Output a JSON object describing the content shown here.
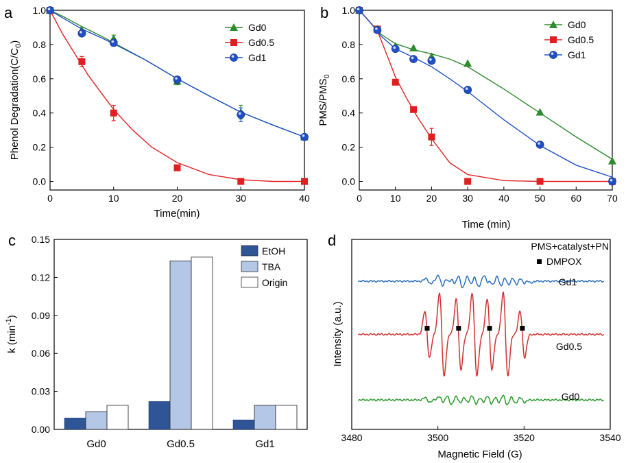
{
  "chart_data": [
    {
      "panel": "a",
      "type": "line",
      "xlabel": "Time(min)",
      "ylabel_main": "Phenol Degradation(C/C",
      "ylabel_sub": "0",
      "ylabel_close": ")",
      "xlim": [
        0,
        40
      ],
      "ylim": [
        -0.05,
        1.0
      ],
      "xticks": [
        0,
        10,
        20,
        30,
        40
      ],
      "xtick_labels": [
        "0",
        "10",
        "20",
        "30",
        "40"
      ],
      "yticks": [
        0.0,
        0.2,
        0.4,
        0.6,
        0.8,
        1.0
      ],
      "ytick_labels": [
        "0.0",
        "0.2",
        "0.4",
        "0.6",
        "0.8",
        "1.0"
      ],
      "legend_position": "top-right",
      "series": [
        {
          "name": "Gd0",
          "marker": "triangle",
          "color": "#2e8b2e",
          "x": [
            0,
            5,
            10,
            20,
            30,
            40
          ],
          "y": [
            1.0,
            0.885,
            0.835,
            0.585,
            0.405,
            0.26
          ],
          "err": [
            0,
            0.015,
            0.02,
            0.02,
            0.04,
            0.015
          ],
          "fit": [
            [
              0,
              1.0
            ],
            [
              2,
              0.965
            ],
            [
              5,
              0.905
            ],
            [
              8,
              0.85
            ],
            [
              10,
              0.81
            ],
            [
              15,
              0.71
            ],
            [
              20,
              0.6
            ],
            [
              25,
              0.5
            ],
            [
              30,
              0.405
            ],
            [
              35,
              0.33
            ],
            [
              40,
              0.26
            ]
          ]
        },
        {
          "name": "Gd0.5",
          "marker": "square",
          "color": "#e02020",
          "x": [
            0,
            5,
            10,
            20,
            30,
            40
          ],
          "y": [
            1.0,
            0.7,
            0.4,
            0.08,
            0.0,
            0.0
          ],
          "err": [
            0,
            0.03,
            0.045,
            0.01,
            0.005,
            0.005
          ],
          "fit": [
            [
              0,
              1.0
            ],
            [
              2,
              0.86
            ],
            [
              4,
              0.74
            ],
            [
              6,
              0.62
            ],
            [
              8,
              0.52
            ],
            [
              10,
              0.42
            ],
            [
              13,
              0.3
            ],
            [
              16,
              0.2
            ],
            [
              20,
              0.11
            ],
            [
              25,
              0.04
            ],
            [
              30,
              0.01
            ],
            [
              35,
              0.0
            ],
            [
              40,
              0.0
            ]
          ]
        },
        {
          "name": "Gd1",
          "marker": "circle",
          "color": "#2050c8",
          "x": [
            0,
            5,
            10,
            20,
            30,
            40
          ],
          "y": [
            1.0,
            0.865,
            0.81,
            0.595,
            0.39,
            0.26
          ],
          "err": [
            0,
            0.015,
            0.02,
            0.015,
            0.04,
            0.015
          ],
          "fit": [
            [
              0,
              1.0
            ],
            [
              2,
              0.955
            ],
            [
              5,
              0.89
            ],
            [
              8,
              0.84
            ],
            [
              10,
              0.805
            ],
            [
              15,
              0.71
            ],
            [
              20,
              0.6
            ],
            [
              25,
              0.5
            ],
            [
              30,
              0.405
            ],
            [
              35,
              0.33
            ],
            [
              40,
              0.26
            ]
          ]
        }
      ]
    },
    {
      "panel": "b",
      "type": "line",
      "xlabel": "Time (min)",
      "ylabel_main": "PMS/PMS",
      "ylabel_sub": "0",
      "xlim": [
        0,
        70
      ],
      "ylim": [
        -0.05,
        1.0
      ],
      "xticks": [
        0,
        10,
        20,
        30,
        40,
        50,
        60,
        70
      ],
      "xtick_labels": [
        "0",
        "10",
        "20",
        "30",
        "40",
        "50",
        "60",
        "70"
      ],
      "yticks": [
        0.0,
        0.2,
        0.4,
        0.6,
        0.8,
        1.0
      ],
      "ytick_labels": [
        "0.0",
        "0.2",
        "0.4",
        "0.6",
        "0.8",
        "1.0"
      ],
      "legend_position": "top-right",
      "series": [
        {
          "name": "Gd0",
          "marker": "triangle",
          "color": "#2e8b2e",
          "x": [
            0,
            5,
            10,
            15,
            20,
            30,
            50,
            70
          ],
          "y": [
            1.0,
            0.89,
            0.79,
            0.78,
            0.73,
            0.69,
            0.405,
            0.12
          ],
          "err": [
            0,
            0.01,
            0.01,
            0.01,
            0.015,
            0.01,
            0.01,
            0.01
          ],
          "fit": [
            [
              0,
              1.0
            ],
            [
              3,
              0.93
            ],
            [
              6,
              0.86
            ],
            [
              10,
              0.805
            ],
            [
              15,
              0.77
            ],
            [
              20,
              0.745
            ],
            [
              25,
              0.715
            ],
            [
              30,
              0.67
            ],
            [
              40,
              0.54
            ],
            [
              50,
              0.4
            ],
            [
              60,
              0.26
            ],
            [
              70,
              0.13
            ]
          ]
        },
        {
          "name": "Gd0.5",
          "marker": "square",
          "color": "#e02020",
          "x": [
            0,
            5,
            10,
            15,
            20,
            30,
            50,
            70
          ],
          "y": [
            1.0,
            0.89,
            0.58,
            0.42,
            0.26,
            0.0,
            0.0,
            0.0
          ],
          "err": [
            0,
            0.01,
            0.015,
            0.01,
            0.05,
            0.005,
            0.005,
            0.005
          ],
          "fit": [
            [
              0,
              1.0
            ],
            [
              3,
              0.93
            ],
            [
              5,
              0.88
            ],
            [
              8,
              0.72
            ],
            [
              10,
              0.61
            ],
            [
              13,
              0.49
            ],
            [
              16,
              0.38
            ],
            [
              20,
              0.25
            ],
            [
              25,
              0.11
            ],
            [
              30,
              0.04
            ],
            [
              40,
              0.005
            ],
            [
              50,
              0.0
            ],
            [
              70,
              0.0
            ]
          ]
        },
        {
          "name": "Gd1",
          "marker": "circle",
          "color": "#2050c8",
          "x": [
            0,
            5,
            10,
            15,
            20,
            30,
            50,
            70
          ],
          "y": [
            1.0,
            0.885,
            0.775,
            0.715,
            0.705,
            0.535,
            0.215,
            0.0
          ],
          "err": [
            0,
            0.01,
            0.01,
            0.01,
            0.015,
            0.01,
            0.01,
            0.005
          ],
          "fit": [
            [
              0,
              1.0
            ],
            [
              3,
              0.93
            ],
            [
              6,
              0.85
            ],
            [
              10,
              0.775
            ],
            [
              15,
              0.725
            ],
            [
              20,
              0.67
            ],
            [
              25,
              0.6
            ],
            [
              30,
              0.525
            ],
            [
              40,
              0.36
            ],
            [
              50,
              0.21
            ],
            [
              60,
              0.095
            ],
            [
              70,
              0.025
            ]
          ]
        }
      ]
    },
    {
      "panel": "c",
      "type": "bar",
      "ylabel_main": "k (min",
      "ylabel_sup": "-1",
      "ylabel_close": ")",
      "categories": [
        "Gd0",
        "Gd0.5",
        "Gd1"
      ],
      "ylim": [
        0.0,
        0.15
      ],
      "yticks": [
        0.0,
        0.03,
        0.06,
        0.09,
        0.12,
        0.15
      ],
      "ytick_labels": [
        "0.00",
        "0.03",
        "0.06",
        "0.09",
        "0.12",
        "0.15"
      ],
      "legend_position": "top-right",
      "series": [
        {
          "name": "EtOH",
          "color": "#2f5597",
          "values": [
            0.009,
            0.022,
            0.0075
          ]
        },
        {
          "name": "TBA",
          "color": "#b4c7e7",
          "values": [
            0.014,
            0.133,
            0.019
          ]
        },
        {
          "name": "Origin",
          "color": "#ffffff",
          "values": [
            0.019,
            0.136,
            0.019
          ]
        }
      ]
    },
    {
      "panel": "d",
      "type": "line",
      "xlabel": "Magnetic Field (G)",
      "ylabel": "Intensity (a.u.)",
      "xlim": [
        3480,
        3540
      ],
      "xticks": [
        3480,
        3500,
        3520,
        3540
      ],
      "xtick_labels": [
        "3480",
        "3500",
        "3520",
        "3540"
      ],
      "legend_title": "PMS+catalyst+PN",
      "legend_marker_label": "DMPOX",
      "marker_positions": [
        3497.5,
        3504.8,
        3512.0,
        3519.6
      ],
      "traces": [
        {
          "name": "Gd1",
          "color": "#2a6ebb",
          "offset": 0.78,
          "amp": 0.035,
          "lines": [
            [
              3497.8,
              0.4
            ],
            [
              3500.6,
              0.9
            ],
            [
              3502.3,
              0.55
            ],
            [
              3503.6,
              0.6
            ],
            [
              3505.2,
              1.0
            ],
            [
              3507.3,
              0.7
            ],
            [
              3508.9,
              0.85
            ],
            [
              3511.2,
              0.8
            ],
            [
              3512.4,
              0.7
            ],
            [
              3514.2,
              0.9
            ],
            [
              3516.0,
              0.65
            ],
            [
              3517.8,
              0.55
            ],
            [
              3519.6,
              0.45
            ],
            [
              3521.0,
              0.25
            ]
          ]
        },
        {
          "name": "Gd0.5",
          "color": "#d03030",
          "offset": 0.5,
          "amp": 0.22,
          "lines": [
            [
              3497.5,
              0.55
            ],
            [
              3500.9,
              1.0
            ],
            [
              3504.8,
              0.85
            ],
            [
              3508.5,
              1.0
            ],
            [
              3512.0,
              0.85
            ],
            [
              3515.7,
              1.0
            ],
            [
              3519.6,
              0.55
            ]
          ]
        },
        {
          "name": "Gd0",
          "color": "#2a9a2a",
          "offset": 0.155,
          "amp": 0.03,
          "lines": [
            [
              3497.6,
              0.4
            ],
            [
              3500.8,
              0.6
            ],
            [
              3502.6,
              0.9
            ],
            [
              3504.7,
              0.7
            ],
            [
              3506.5,
              0.6
            ],
            [
              3508.4,
              0.9
            ],
            [
              3510.2,
              0.55
            ],
            [
              3512.0,
              0.8
            ],
            [
              3513.8,
              0.6
            ],
            [
              3515.6,
              0.9
            ],
            [
              3517.5,
              0.55
            ],
            [
              3519.6,
              0.4
            ]
          ]
        }
      ]
    }
  ],
  "panel_labels": {
    "a": "a",
    "b": "b",
    "c": "c",
    "d": "d"
  }
}
